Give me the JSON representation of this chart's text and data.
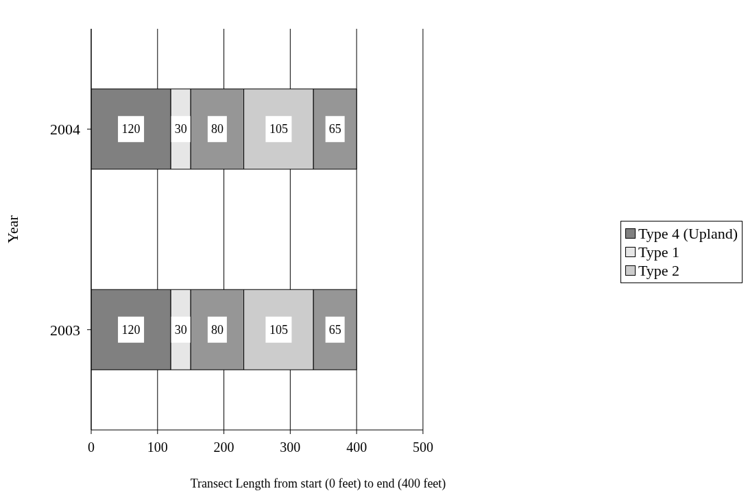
{
  "chart_data": {
    "type": "bar",
    "orientation": "horizontal",
    "stacked": true,
    "xlabel": "Transect Length from start (0 feet) to end (400 feet)",
    "ylabel": "Year",
    "categories": [
      "2004",
      "2003"
    ],
    "series": [
      {
        "name": "Type 4 (Upland)",
        "color": "#808080",
        "values": [
          120,
          120
        ]
      },
      {
        "name": "Type 1",
        "color": "#e6e6e6",
        "values": [
          30,
          30
        ]
      },
      {
        "color": "#969696",
        "values": [
          80,
          80
        ]
      },
      {
        "name": "Type 2",
        "color": "#cccccc",
        "values": [
          105,
          105
        ]
      },
      {
        "color": "#969696",
        "values": [
          65,
          65
        ]
      }
    ],
    "xlim": [
      0,
      500
    ],
    "xticks": [
      0,
      100,
      200,
      300,
      400,
      500
    ],
    "grid": "x",
    "data_labels": true,
    "legend": "right"
  }
}
